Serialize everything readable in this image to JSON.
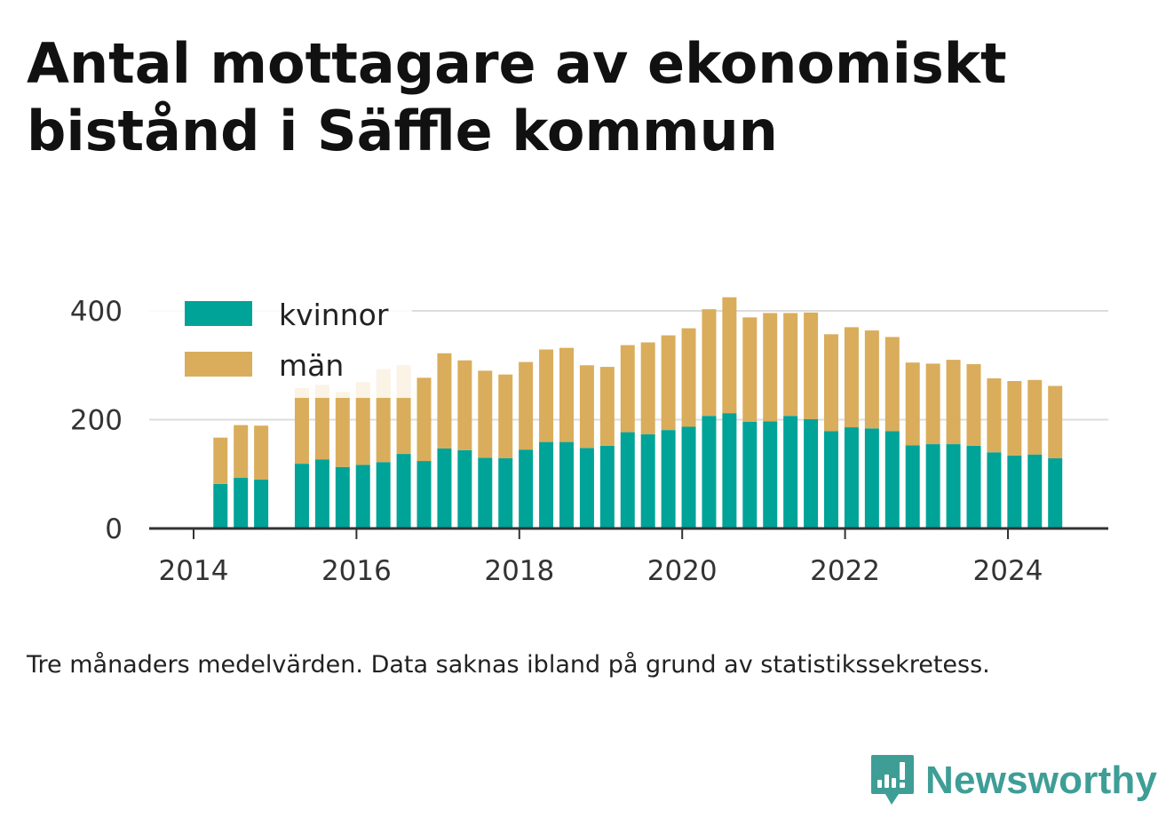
{
  "title": "Antal mottagare av ekonomiskt bistånd i Säffle kommun",
  "note": "Tre månaders medelvärden. Data saknas ibland på grund av statistikssekretess.",
  "brand": {
    "name": "Newsworthy"
  },
  "colors": {
    "kvinnor": "#00a398",
    "man": "#d9ad5b",
    "grid": "#dddddd",
    "axis": "#333333"
  },
  "chart_data": {
    "type": "bar",
    "stacked": true,
    "title": "Antal mottagare av ekonomiskt bistånd i Säffle kommun",
    "xlabel": "",
    "ylabel": "",
    "ylim": [
      0,
      430
    ],
    "yticks": [
      0,
      200,
      400
    ],
    "xlim": [
      2013.7,
      2025.2
    ],
    "xticks": [
      2014,
      2016,
      2018,
      2020,
      2022,
      2024
    ],
    "grid": true,
    "legend_position": "top-left",
    "series": [
      {
        "name": "kvinnor",
        "points": [
          {
            "x": 2014.33,
            "y": 82
          },
          {
            "x": 2014.58,
            "y": 93
          },
          {
            "x": 2014.83,
            "y": 90
          },
          {
            "x": 2015.33,
            "y": 119
          },
          {
            "x": 2015.58,
            "y": 127
          },
          {
            "x": 2015.83,
            "y": 113
          },
          {
            "x": 2016.08,
            "y": 117
          },
          {
            "x": 2016.33,
            "y": 122
          },
          {
            "x": 2016.58,
            "y": 137
          },
          {
            "x": 2016.83,
            "y": 124
          },
          {
            "x": 2017.08,
            "y": 147
          },
          {
            "x": 2017.33,
            "y": 144
          },
          {
            "x": 2017.58,
            "y": 130
          },
          {
            "x": 2017.83,
            "y": 129
          },
          {
            "x": 2018.08,
            "y": 145
          },
          {
            "x": 2018.33,
            "y": 159
          },
          {
            "x": 2018.58,
            "y": 159
          },
          {
            "x": 2018.83,
            "y": 148
          },
          {
            "x": 2019.08,
            "y": 152
          },
          {
            "x": 2019.33,
            "y": 177
          },
          {
            "x": 2019.58,
            "y": 173
          },
          {
            "x": 2019.83,
            "y": 181
          },
          {
            "x": 2020.08,
            "y": 187
          },
          {
            "x": 2020.33,
            "y": 207
          },
          {
            "x": 2020.58,
            "y": 212
          },
          {
            "x": 2020.83,
            "y": 196
          },
          {
            "x": 2021.08,
            "y": 197
          },
          {
            "x": 2021.33,
            "y": 207
          },
          {
            "x": 2021.58,
            "y": 201
          },
          {
            "x": 2021.83,
            "y": 179
          },
          {
            "x": 2022.08,
            "y": 186
          },
          {
            "x": 2022.33,
            "y": 184
          },
          {
            "x": 2022.58,
            "y": 179
          },
          {
            "x": 2022.83,
            "y": 153
          },
          {
            "x": 2023.08,
            "y": 155
          },
          {
            "x": 2023.33,
            "y": 155
          },
          {
            "x": 2023.58,
            "y": 152
          },
          {
            "x": 2023.83,
            "y": 140
          },
          {
            "x": 2024.08,
            "y": 134
          },
          {
            "x": 2024.33,
            "y": 136
          },
          {
            "x": 2024.58,
            "y": 129
          }
        ]
      },
      {
        "name": "män",
        "points": [
          {
            "x": 2014.33,
            "y": 85
          },
          {
            "x": 2014.58,
            "y": 97
          },
          {
            "x": 2014.83,
            "y": 99
          },
          {
            "x": 2015.33,
            "y": 139
          },
          {
            "x": 2015.58,
            "y": 137
          },
          {
            "x": 2015.83,
            "y": 138
          },
          {
            "x": 2016.08,
            "y": 152
          },
          {
            "x": 2016.33,
            "y": 171
          },
          {
            "x": 2016.58,
            "y": 163
          },
          {
            "x": 2016.83,
            "y": 153
          },
          {
            "x": 2017.08,
            "y": 175
          },
          {
            "x": 2017.33,
            "y": 165
          },
          {
            "x": 2017.58,
            "y": 160
          },
          {
            "x": 2017.83,
            "y": 154
          },
          {
            "x": 2018.08,
            "y": 161
          },
          {
            "x": 2018.33,
            "y": 170
          },
          {
            "x": 2018.58,
            "y": 173
          },
          {
            "x": 2018.83,
            "y": 152
          },
          {
            "x": 2019.08,
            "y": 145
          },
          {
            "x": 2019.33,
            "y": 160
          },
          {
            "x": 2019.58,
            "y": 169
          },
          {
            "x": 2019.83,
            "y": 174
          },
          {
            "x": 2020.08,
            "y": 181
          },
          {
            "x": 2020.33,
            "y": 196
          },
          {
            "x": 2020.58,
            "y": 213
          },
          {
            "x": 2020.83,
            "y": 192
          },
          {
            "x": 2021.08,
            "y": 199
          },
          {
            "x": 2021.33,
            "y": 189
          },
          {
            "x": 2021.58,
            "y": 196
          },
          {
            "x": 2021.83,
            "y": 178
          },
          {
            "x": 2022.08,
            "y": 184
          },
          {
            "x": 2022.33,
            "y": 180
          },
          {
            "x": 2022.58,
            "y": 173
          },
          {
            "x": 2022.83,
            "y": 152
          },
          {
            "x": 2023.08,
            "y": 148
          },
          {
            "x": 2023.33,
            "y": 155
          },
          {
            "x": 2023.58,
            "y": 150
          },
          {
            "x": 2023.83,
            "y": 136
          },
          {
            "x": 2024.08,
            "y": 137
          },
          {
            "x": 2024.33,
            "y": 137
          },
          {
            "x": 2024.58,
            "y": 133
          }
        ]
      }
    ]
  }
}
